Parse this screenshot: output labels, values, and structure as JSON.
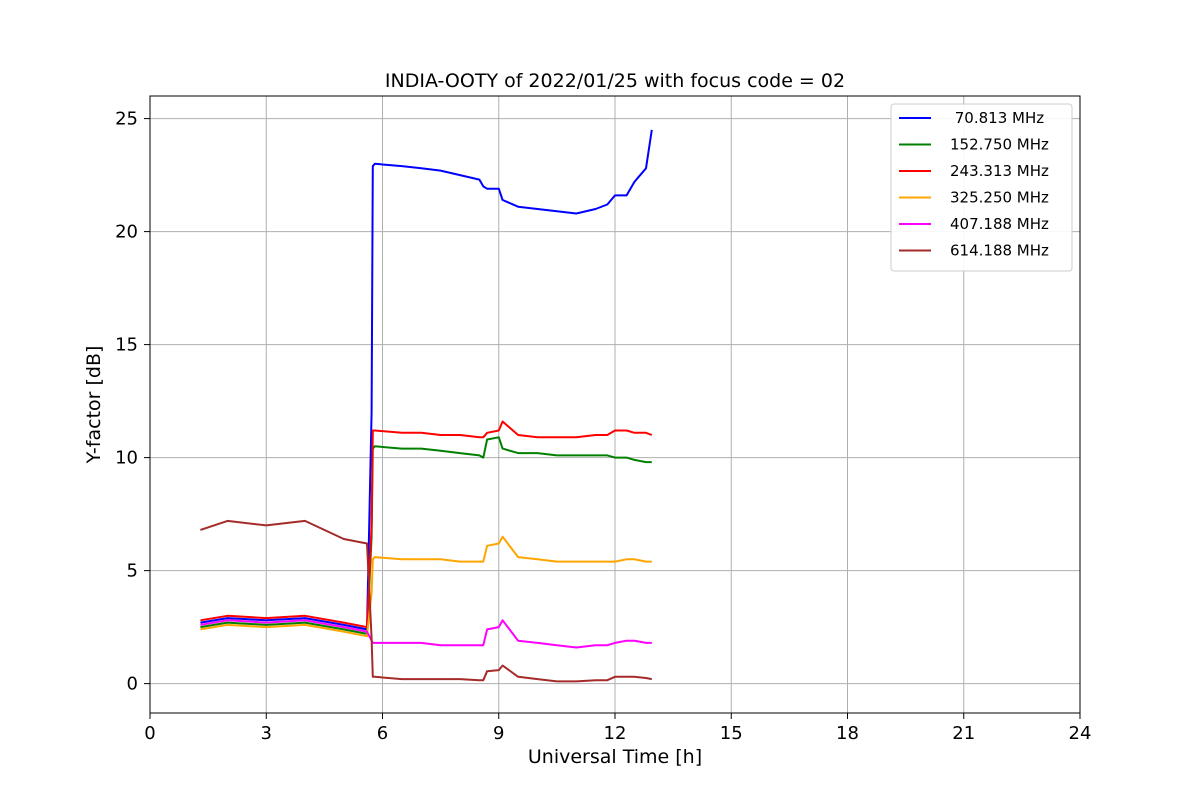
{
  "chart_data": {
    "type": "line",
    "title": "INDIA-OOTY of 2022/01/25 with focus code = 02",
    "xlabel": "Universal Time [h]",
    "ylabel": "Y-factor [dB]",
    "xlim": [
      0,
      24
    ],
    "ylim": [
      -1.3,
      26
    ],
    "xticks": [
      0,
      3,
      6,
      9,
      12,
      15,
      18,
      21,
      24
    ],
    "yticks": [
      0,
      5,
      10,
      15,
      20,
      25
    ],
    "grid": true,
    "legend_position": "top-right",
    "series": [
      {
        "name": " 70.813 MHz",
        "color": "#0000ff",
        "x": [
          1.3,
          2.0,
          3.0,
          4.0,
          5.0,
          5.6,
          5.72,
          5.75,
          5.8,
          6.5,
          7.0,
          7.5,
          8.0,
          8.5,
          8.6,
          8.7,
          9.0,
          9.1,
          9.5,
          10.0,
          10.5,
          11.0,
          11.5,
          11.8,
          12.0,
          12.3,
          12.5,
          12.8,
          12.95
        ],
        "y": [
          2.7,
          2.9,
          2.8,
          2.9,
          2.6,
          2.4,
          12.0,
          22.9,
          23.0,
          22.9,
          22.8,
          22.7,
          22.5,
          22.3,
          22.0,
          21.9,
          21.9,
          21.4,
          21.1,
          21.0,
          20.9,
          20.8,
          21.0,
          21.2,
          21.6,
          21.6,
          22.2,
          22.8,
          24.5
        ]
      },
      {
        "name": "152.750 MHz",
        "color": "#008000",
        "x": [
          1.3,
          2.0,
          3.0,
          4.0,
          5.0,
          5.6,
          5.72,
          5.75,
          5.8,
          6.5,
          7.0,
          7.5,
          8.0,
          8.5,
          8.6,
          8.7,
          9.0,
          9.1,
          9.5,
          10.0,
          10.5,
          11.0,
          11.5,
          11.8,
          12.0,
          12.3,
          12.5,
          12.8,
          12.95
        ],
        "y": [
          2.5,
          2.7,
          2.6,
          2.7,
          2.4,
          2.2,
          6.5,
          10.4,
          10.5,
          10.4,
          10.4,
          10.3,
          10.2,
          10.1,
          10.0,
          10.8,
          10.9,
          10.4,
          10.2,
          10.2,
          10.1,
          10.1,
          10.1,
          10.1,
          10.0,
          10.0,
          9.9,
          9.8,
          9.8
        ]
      },
      {
        "name": "243.313 MHz",
        "color": "#ff0000",
        "x": [
          1.3,
          2.0,
          3.0,
          4.0,
          5.0,
          5.6,
          5.72,
          5.75,
          5.8,
          6.5,
          7.0,
          7.5,
          8.0,
          8.5,
          8.6,
          8.7,
          9.0,
          9.1,
          9.5,
          10.0,
          10.5,
          11.0,
          11.5,
          11.8,
          12.0,
          12.3,
          12.5,
          12.8,
          12.95
        ],
        "y": [
          2.8,
          3.0,
          2.9,
          3.0,
          2.7,
          2.5,
          7.0,
          11.2,
          11.2,
          11.1,
          11.1,
          11.0,
          11.0,
          10.9,
          10.9,
          11.1,
          11.2,
          11.6,
          11.0,
          10.9,
          10.9,
          10.9,
          11.0,
          11.0,
          11.2,
          11.2,
          11.1,
          11.1,
          11.0
        ]
      },
      {
        "name": "325.250 MHz",
        "color": "#ffa500",
        "x": [
          1.3,
          2.0,
          3.0,
          4.0,
          5.0,
          5.6,
          5.72,
          5.75,
          5.8,
          6.5,
          7.0,
          7.5,
          8.0,
          8.5,
          8.6,
          8.7,
          9.0,
          9.1,
          9.5,
          10.0,
          10.5,
          11.0,
          11.5,
          11.8,
          12.0,
          12.3,
          12.5,
          12.8,
          12.95
        ],
        "y": [
          2.4,
          2.6,
          2.5,
          2.6,
          2.3,
          2.1,
          4.0,
          5.5,
          5.6,
          5.5,
          5.5,
          5.5,
          5.4,
          5.4,
          5.4,
          6.1,
          6.2,
          6.5,
          5.6,
          5.5,
          5.4,
          5.4,
          5.4,
          5.4,
          5.4,
          5.5,
          5.5,
          5.4,
          5.4
        ]
      },
      {
        "name": "407.188 MHz",
        "color": "#ff00ff",
        "x": [
          1.3,
          2.0,
          3.0,
          4.0,
          5.0,
          5.6,
          5.72,
          5.75,
          5.8,
          6.5,
          7.0,
          7.5,
          8.0,
          8.5,
          8.6,
          8.7,
          9.0,
          9.1,
          9.5,
          10.0,
          10.5,
          11.0,
          11.5,
          11.8,
          12.0,
          12.3,
          12.5,
          12.8,
          12.95
        ],
        "y": [
          2.6,
          2.8,
          2.7,
          2.8,
          2.5,
          2.3,
          1.9,
          1.8,
          1.8,
          1.8,
          1.8,
          1.7,
          1.7,
          1.7,
          1.7,
          2.4,
          2.5,
          2.8,
          1.9,
          1.8,
          1.7,
          1.6,
          1.7,
          1.7,
          1.8,
          1.9,
          1.9,
          1.8,
          1.8
        ]
      },
      {
        "name": "614.188 MHz",
        "color": "#a52a2a",
        "x": [
          1.3,
          2.0,
          3.0,
          4.0,
          5.0,
          5.6,
          5.72,
          5.75,
          5.8,
          6.5,
          7.0,
          7.5,
          8.0,
          8.5,
          8.6,
          8.7,
          9.0,
          9.1,
          9.5,
          10.0,
          10.5,
          11.0,
          11.5,
          11.8,
          12.0,
          12.3,
          12.5,
          12.8,
          12.95
        ],
        "y": [
          6.8,
          7.2,
          7.0,
          7.2,
          6.4,
          6.2,
          2.0,
          0.3,
          0.3,
          0.2,
          0.2,
          0.2,
          0.2,
          0.15,
          0.15,
          0.55,
          0.6,
          0.8,
          0.3,
          0.2,
          0.1,
          0.1,
          0.15,
          0.15,
          0.3,
          0.3,
          0.3,
          0.25,
          0.2
        ]
      }
    ]
  }
}
